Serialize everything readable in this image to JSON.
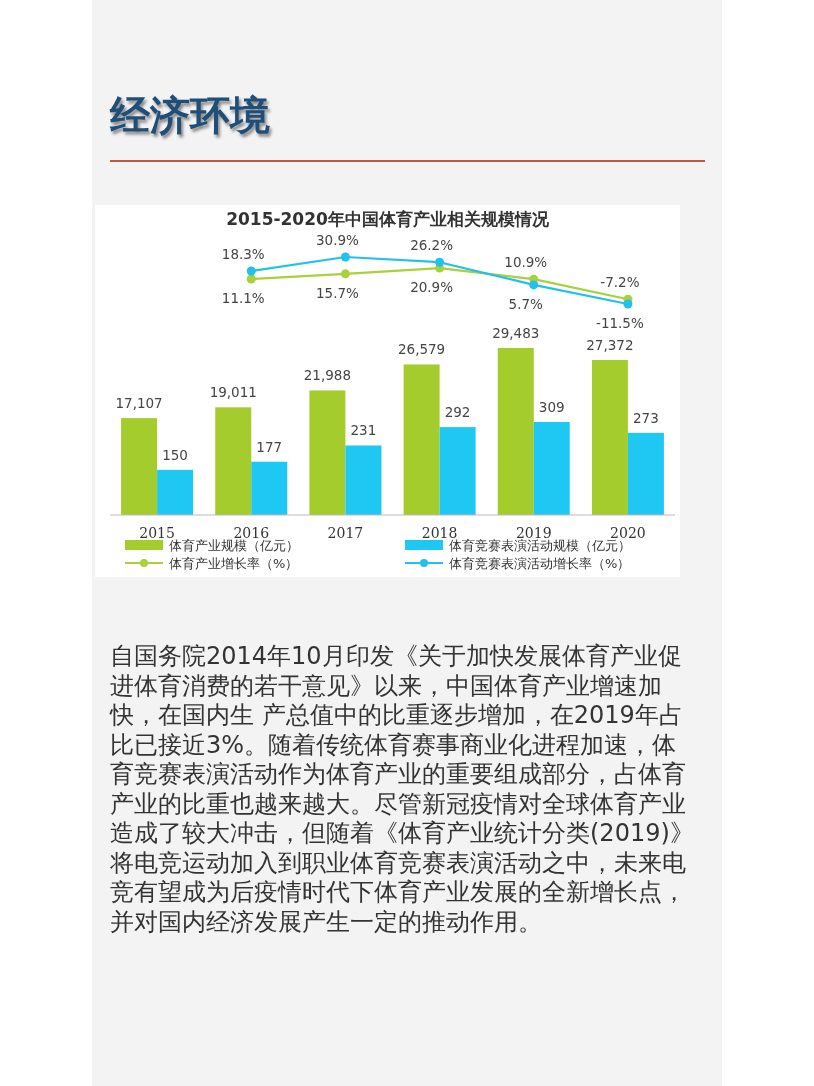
{
  "chart_data": [
    {
      "type": "line",
      "title": "2015-2020年中国体育产业相关规模情况",
      "categories": [
        "2015",
        "2016",
        "2017",
        "2018",
        "2019",
        "2020"
      ],
      "series": [
        {
          "name": "体育产业增长率（%）",
          "color": "#a8d13a",
          "values": [
            null,
            11.1,
            15.7,
            20.9,
            10.9,
            -7.2
          ],
          "value_labels": [
            null,
            "11.1%",
            "15.7%",
            "20.9%",
            "10.9%",
            "-7.2%"
          ]
        },
        {
          "name": "体育竞赛表演活动增长率（%）",
          "color": "#22c0ee",
          "values": [
            null,
            18.3,
            30.9,
            26.2,
            5.7,
            -11.5
          ],
          "value_labels": [
            null,
            "18.3%",
            "30.9%",
            "26.2%",
            "5.7%",
            "-11.5%"
          ]
        }
      ],
      "marker": "circle",
      "tick_labels": false,
      "legend": "bottom",
      "annotations": [
        "经济环境",
        "自国务院2014年10月印发《关于加快发展体育产业促进体育消费的若干意见》以来，中国体育产业增速加快，在国内生 产总值中的比重逐步增加，在2019年占比已接近3%。随着传统体育赛事商业化进程加速，体育竞赛表演活动作为体育产业的重要组成部分，占体育产业的比重也越来越大。尽管新冠疫情对全球体育产业造成了较大冲击，但随着《体育产业统计分类(2019)》将电竞运动加入到职业体育竞赛表演活动之中，未来电竞有望成为后疫情时代下体育产业发展的全新增长点，并对国内经济发展产生一定的推动作用。"
      ]
    },
    {
      "type": "bar",
      "categories": [
        "2015",
        "2016",
        "2017",
        "2018",
        "2019",
        "2020"
      ],
      "series": [
        {
          "name": "体育产业规模（亿元）",
          "color": "#a4cc2c",
          "values": [
            17107,
            19011,
            21988,
            26579,
            29483,
            27372
          ],
          "value_labels": [
            "17,107",
            "19,011",
            "21,988",
            "26,579",
            "29,483",
            "27,372"
          ]
        },
        {
          "name": "体育竞赛表演活动规模（亿元）",
          "axis": "y2",
          "color": "#1fc8f2",
          "values": [
            150,
            177,
            231,
            292,
            309,
            273
          ],
          "value_labels": [
            "150",
            "177",
            "231",
            "292",
            "309",
            "273"
          ]
        }
      ],
      "legend": "bottom"
    }
  ]
}
